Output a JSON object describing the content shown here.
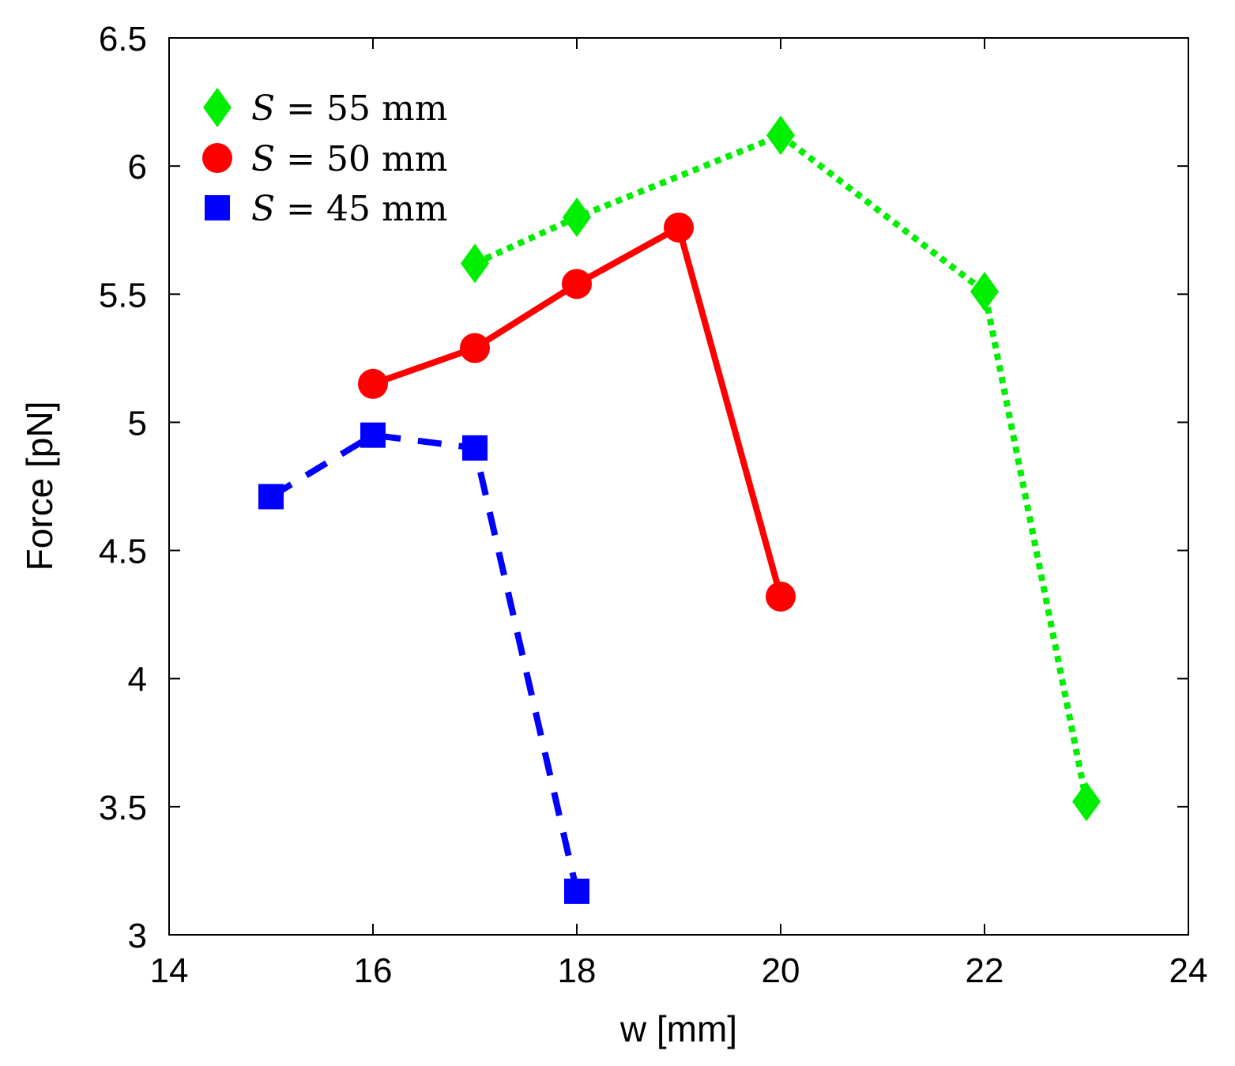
{
  "chart_data": {
    "type": "line",
    "xlabel": "w [mm]",
    "ylabel": "Force [pN]",
    "xlim": [
      14,
      24
    ],
    "ylim": [
      3,
      6.5
    ],
    "xticks": [
      14,
      16,
      18,
      20,
      22,
      24
    ],
    "yticks": [
      3,
      3.5,
      4,
      4.5,
      5,
      5.5,
      6,
      6.5
    ],
    "ytick_labels": [
      "3",
      "3.5",
      "4",
      "4.5",
      "5",
      "5.5",
      "6",
      "6.5"
    ],
    "grid": false,
    "legend_position": "top-left",
    "series": [
      {
        "name": "S = 55 mm",
        "legend_symbol": "S",
        "legend_text": " = 55 mm",
        "marker": "diamond",
        "line_style": "dotted",
        "color": "#00ee00",
        "x": [
          17,
          18,
          20,
          22,
          23
        ],
        "values": [
          5.62,
          5.8,
          6.12,
          5.51,
          3.52
        ]
      },
      {
        "name": "S = 50 mm",
        "legend_symbol": "S",
        "legend_text": " = 50 mm",
        "marker": "circle",
        "line_style": "solid",
        "color": "#ff0000",
        "x": [
          16,
          17,
          18,
          19,
          20
        ],
        "values": [
          5.15,
          5.29,
          5.54,
          5.76,
          4.32
        ]
      },
      {
        "name": "S = 45 mm",
        "legend_symbol": "S",
        "legend_text": " = 45 mm",
        "marker": "square",
        "line_style": "dashed",
        "color": "#0000ff",
        "x": [
          15,
          16,
          17,
          18
        ],
        "values": [
          4.71,
          4.95,
          4.9,
          3.17
        ]
      }
    ]
  }
}
